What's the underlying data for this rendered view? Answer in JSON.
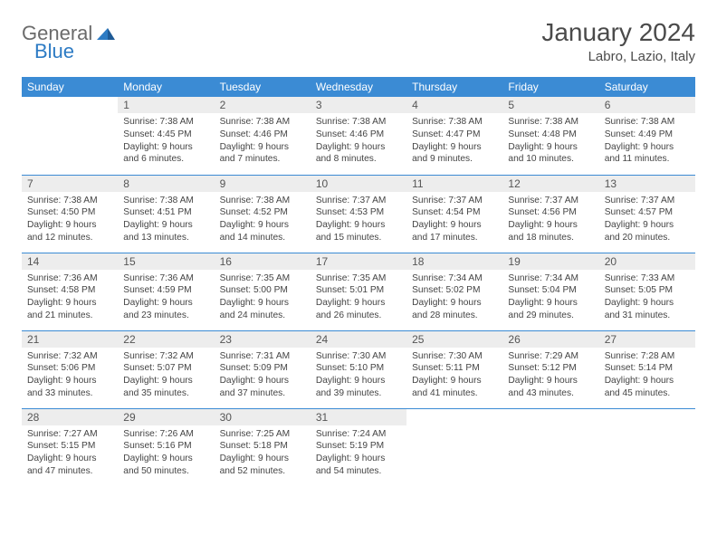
{
  "logo": {
    "part1": "General",
    "part2": "Blue"
  },
  "title": "January 2024",
  "location": "Labro, Lazio, Italy",
  "colors": {
    "header_bg": "#3b8bd4",
    "header_text": "#ffffff",
    "daynum_bg": "#ededed",
    "border": "#3b8bd4",
    "logo_gray": "#6b6b6b",
    "logo_blue": "#2d7bc4"
  },
  "weekdays": [
    "Sunday",
    "Monday",
    "Tuesday",
    "Wednesday",
    "Thursday",
    "Friday",
    "Saturday"
  ],
  "cells": [
    {
      "n": "",
      "sr": "",
      "ss": "",
      "d1": "",
      "d2": ""
    },
    {
      "n": "1",
      "sr": "Sunrise: 7:38 AM",
      "ss": "Sunset: 4:45 PM",
      "d1": "Daylight: 9 hours",
      "d2": "and 6 minutes."
    },
    {
      "n": "2",
      "sr": "Sunrise: 7:38 AM",
      "ss": "Sunset: 4:46 PM",
      "d1": "Daylight: 9 hours",
      "d2": "and 7 minutes."
    },
    {
      "n": "3",
      "sr": "Sunrise: 7:38 AM",
      "ss": "Sunset: 4:46 PM",
      "d1": "Daylight: 9 hours",
      "d2": "and 8 minutes."
    },
    {
      "n": "4",
      "sr": "Sunrise: 7:38 AM",
      "ss": "Sunset: 4:47 PM",
      "d1": "Daylight: 9 hours",
      "d2": "and 9 minutes."
    },
    {
      "n": "5",
      "sr": "Sunrise: 7:38 AM",
      "ss": "Sunset: 4:48 PM",
      "d1": "Daylight: 9 hours",
      "d2": "and 10 minutes."
    },
    {
      "n": "6",
      "sr": "Sunrise: 7:38 AM",
      "ss": "Sunset: 4:49 PM",
      "d1": "Daylight: 9 hours",
      "d2": "and 11 minutes."
    },
    {
      "n": "7",
      "sr": "Sunrise: 7:38 AM",
      "ss": "Sunset: 4:50 PM",
      "d1": "Daylight: 9 hours",
      "d2": "and 12 minutes."
    },
    {
      "n": "8",
      "sr": "Sunrise: 7:38 AM",
      "ss": "Sunset: 4:51 PM",
      "d1": "Daylight: 9 hours",
      "d2": "and 13 minutes."
    },
    {
      "n": "9",
      "sr": "Sunrise: 7:38 AM",
      "ss": "Sunset: 4:52 PM",
      "d1": "Daylight: 9 hours",
      "d2": "and 14 minutes."
    },
    {
      "n": "10",
      "sr": "Sunrise: 7:37 AM",
      "ss": "Sunset: 4:53 PM",
      "d1": "Daylight: 9 hours",
      "d2": "and 15 minutes."
    },
    {
      "n": "11",
      "sr": "Sunrise: 7:37 AM",
      "ss": "Sunset: 4:54 PM",
      "d1": "Daylight: 9 hours",
      "d2": "and 17 minutes."
    },
    {
      "n": "12",
      "sr": "Sunrise: 7:37 AM",
      "ss": "Sunset: 4:56 PM",
      "d1": "Daylight: 9 hours",
      "d2": "and 18 minutes."
    },
    {
      "n": "13",
      "sr": "Sunrise: 7:37 AM",
      "ss": "Sunset: 4:57 PM",
      "d1": "Daylight: 9 hours",
      "d2": "and 20 minutes."
    },
    {
      "n": "14",
      "sr": "Sunrise: 7:36 AM",
      "ss": "Sunset: 4:58 PM",
      "d1": "Daylight: 9 hours",
      "d2": "and 21 minutes."
    },
    {
      "n": "15",
      "sr": "Sunrise: 7:36 AM",
      "ss": "Sunset: 4:59 PM",
      "d1": "Daylight: 9 hours",
      "d2": "and 23 minutes."
    },
    {
      "n": "16",
      "sr": "Sunrise: 7:35 AM",
      "ss": "Sunset: 5:00 PM",
      "d1": "Daylight: 9 hours",
      "d2": "and 24 minutes."
    },
    {
      "n": "17",
      "sr": "Sunrise: 7:35 AM",
      "ss": "Sunset: 5:01 PM",
      "d1": "Daylight: 9 hours",
      "d2": "and 26 minutes."
    },
    {
      "n": "18",
      "sr": "Sunrise: 7:34 AM",
      "ss": "Sunset: 5:02 PM",
      "d1": "Daylight: 9 hours",
      "d2": "and 28 minutes."
    },
    {
      "n": "19",
      "sr": "Sunrise: 7:34 AM",
      "ss": "Sunset: 5:04 PM",
      "d1": "Daylight: 9 hours",
      "d2": "and 29 minutes."
    },
    {
      "n": "20",
      "sr": "Sunrise: 7:33 AM",
      "ss": "Sunset: 5:05 PM",
      "d1": "Daylight: 9 hours",
      "d2": "and 31 minutes."
    },
    {
      "n": "21",
      "sr": "Sunrise: 7:32 AM",
      "ss": "Sunset: 5:06 PM",
      "d1": "Daylight: 9 hours",
      "d2": "and 33 minutes."
    },
    {
      "n": "22",
      "sr": "Sunrise: 7:32 AM",
      "ss": "Sunset: 5:07 PM",
      "d1": "Daylight: 9 hours",
      "d2": "and 35 minutes."
    },
    {
      "n": "23",
      "sr": "Sunrise: 7:31 AM",
      "ss": "Sunset: 5:09 PM",
      "d1": "Daylight: 9 hours",
      "d2": "and 37 minutes."
    },
    {
      "n": "24",
      "sr": "Sunrise: 7:30 AM",
      "ss": "Sunset: 5:10 PM",
      "d1": "Daylight: 9 hours",
      "d2": "and 39 minutes."
    },
    {
      "n": "25",
      "sr": "Sunrise: 7:30 AM",
      "ss": "Sunset: 5:11 PM",
      "d1": "Daylight: 9 hours",
      "d2": "and 41 minutes."
    },
    {
      "n": "26",
      "sr": "Sunrise: 7:29 AM",
      "ss": "Sunset: 5:12 PM",
      "d1": "Daylight: 9 hours",
      "d2": "and 43 minutes."
    },
    {
      "n": "27",
      "sr": "Sunrise: 7:28 AM",
      "ss": "Sunset: 5:14 PM",
      "d1": "Daylight: 9 hours",
      "d2": "and 45 minutes."
    },
    {
      "n": "28",
      "sr": "Sunrise: 7:27 AM",
      "ss": "Sunset: 5:15 PM",
      "d1": "Daylight: 9 hours",
      "d2": "and 47 minutes."
    },
    {
      "n": "29",
      "sr": "Sunrise: 7:26 AM",
      "ss": "Sunset: 5:16 PM",
      "d1": "Daylight: 9 hours",
      "d2": "and 50 minutes."
    },
    {
      "n": "30",
      "sr": "Sunrise: 7:25 AM",
      "ss": "Sunset: 5:18 PM",
      "d1": "Daylight: 9 hours",
      "d2": "and 52 minutes."
    },
    {
      "n": "31",
      "sr": "Sunrise: 7:24 AM",
      "ss": "Sunset: 5:19 PM",
      "d1": "Daylight: 9 hours",
      "d2": "and 54 minutes."
    },
    {
      "n": "",
      "sr": "",
      "ss": "",
      "d1": "",
      "d2": ""
    },
    {
      "n": "",
      "sr": "",
      "ss": "",
      "d1": "",
      "d2": ""
    },
    {
      "n": "",
      "sr": "",
      "ss": "",
      "d1": "",
      "d2": ""
    }
  ]
}
